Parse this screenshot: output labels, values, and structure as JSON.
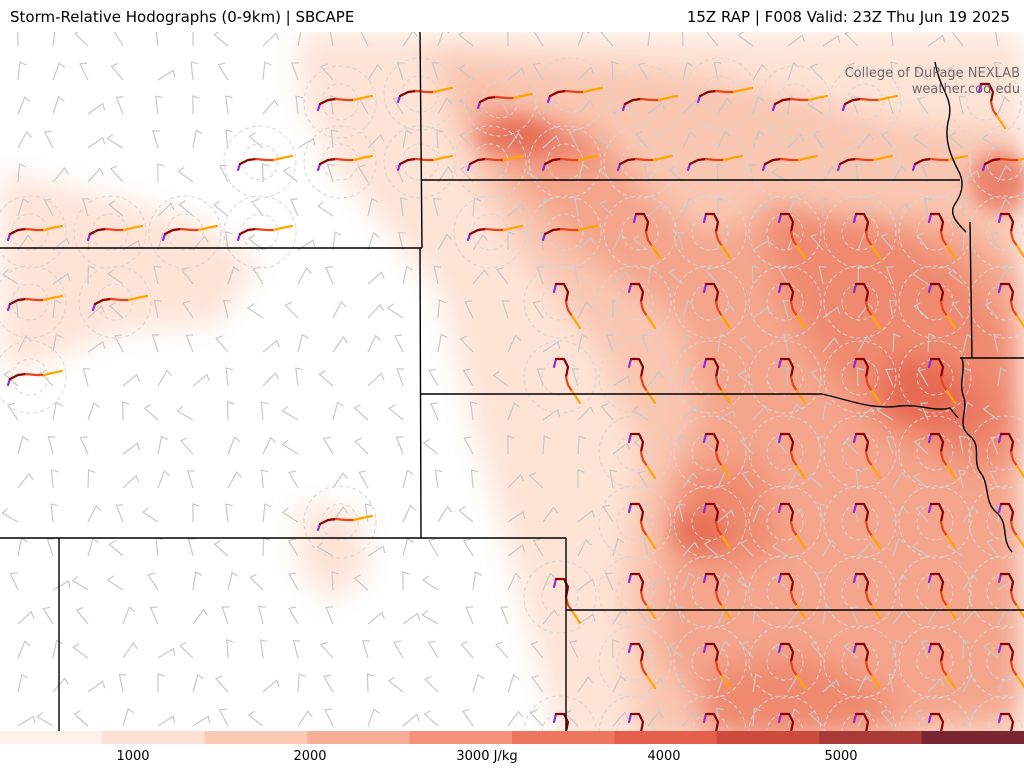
{
  "header": {
    "title_left": "Storm-Relative Hodographs (0-9km) | SBCAPE",
    "title_right": "15Z RAP | F008 Valid: 23Z Thu Jun 19 2025"
  },
  "credit": {
    "line1": "College of DuPage NEXLAB",
    "line2": "weather.cod.edu"
  },
  "colorbar": {
    "units": "J/kg",
    "ticks": [
      "1000",
      "2000",
      "3000 J/kg",
      "4000",
      "5000"
    ],
    "colors": [
      "#fff1ea",
      "#fde0d3",
      "#fbc9b4",
      "#f8ae96",
      "#f49279",
      "#ef765e",
      "#e35f4b",
      "#cd4a3e",
      "#a93a35",
      "#7a2630"
    ]
  },
  "map": {
    "field": "SBCAPE",
    "overlay": "storm-relative hodographs 0-9km",
    "hodograph_colors": [
      "#8a2be2",
      "#8b0000",
      "#e8451a",
      "#ffa500"
    ]
  }
}
